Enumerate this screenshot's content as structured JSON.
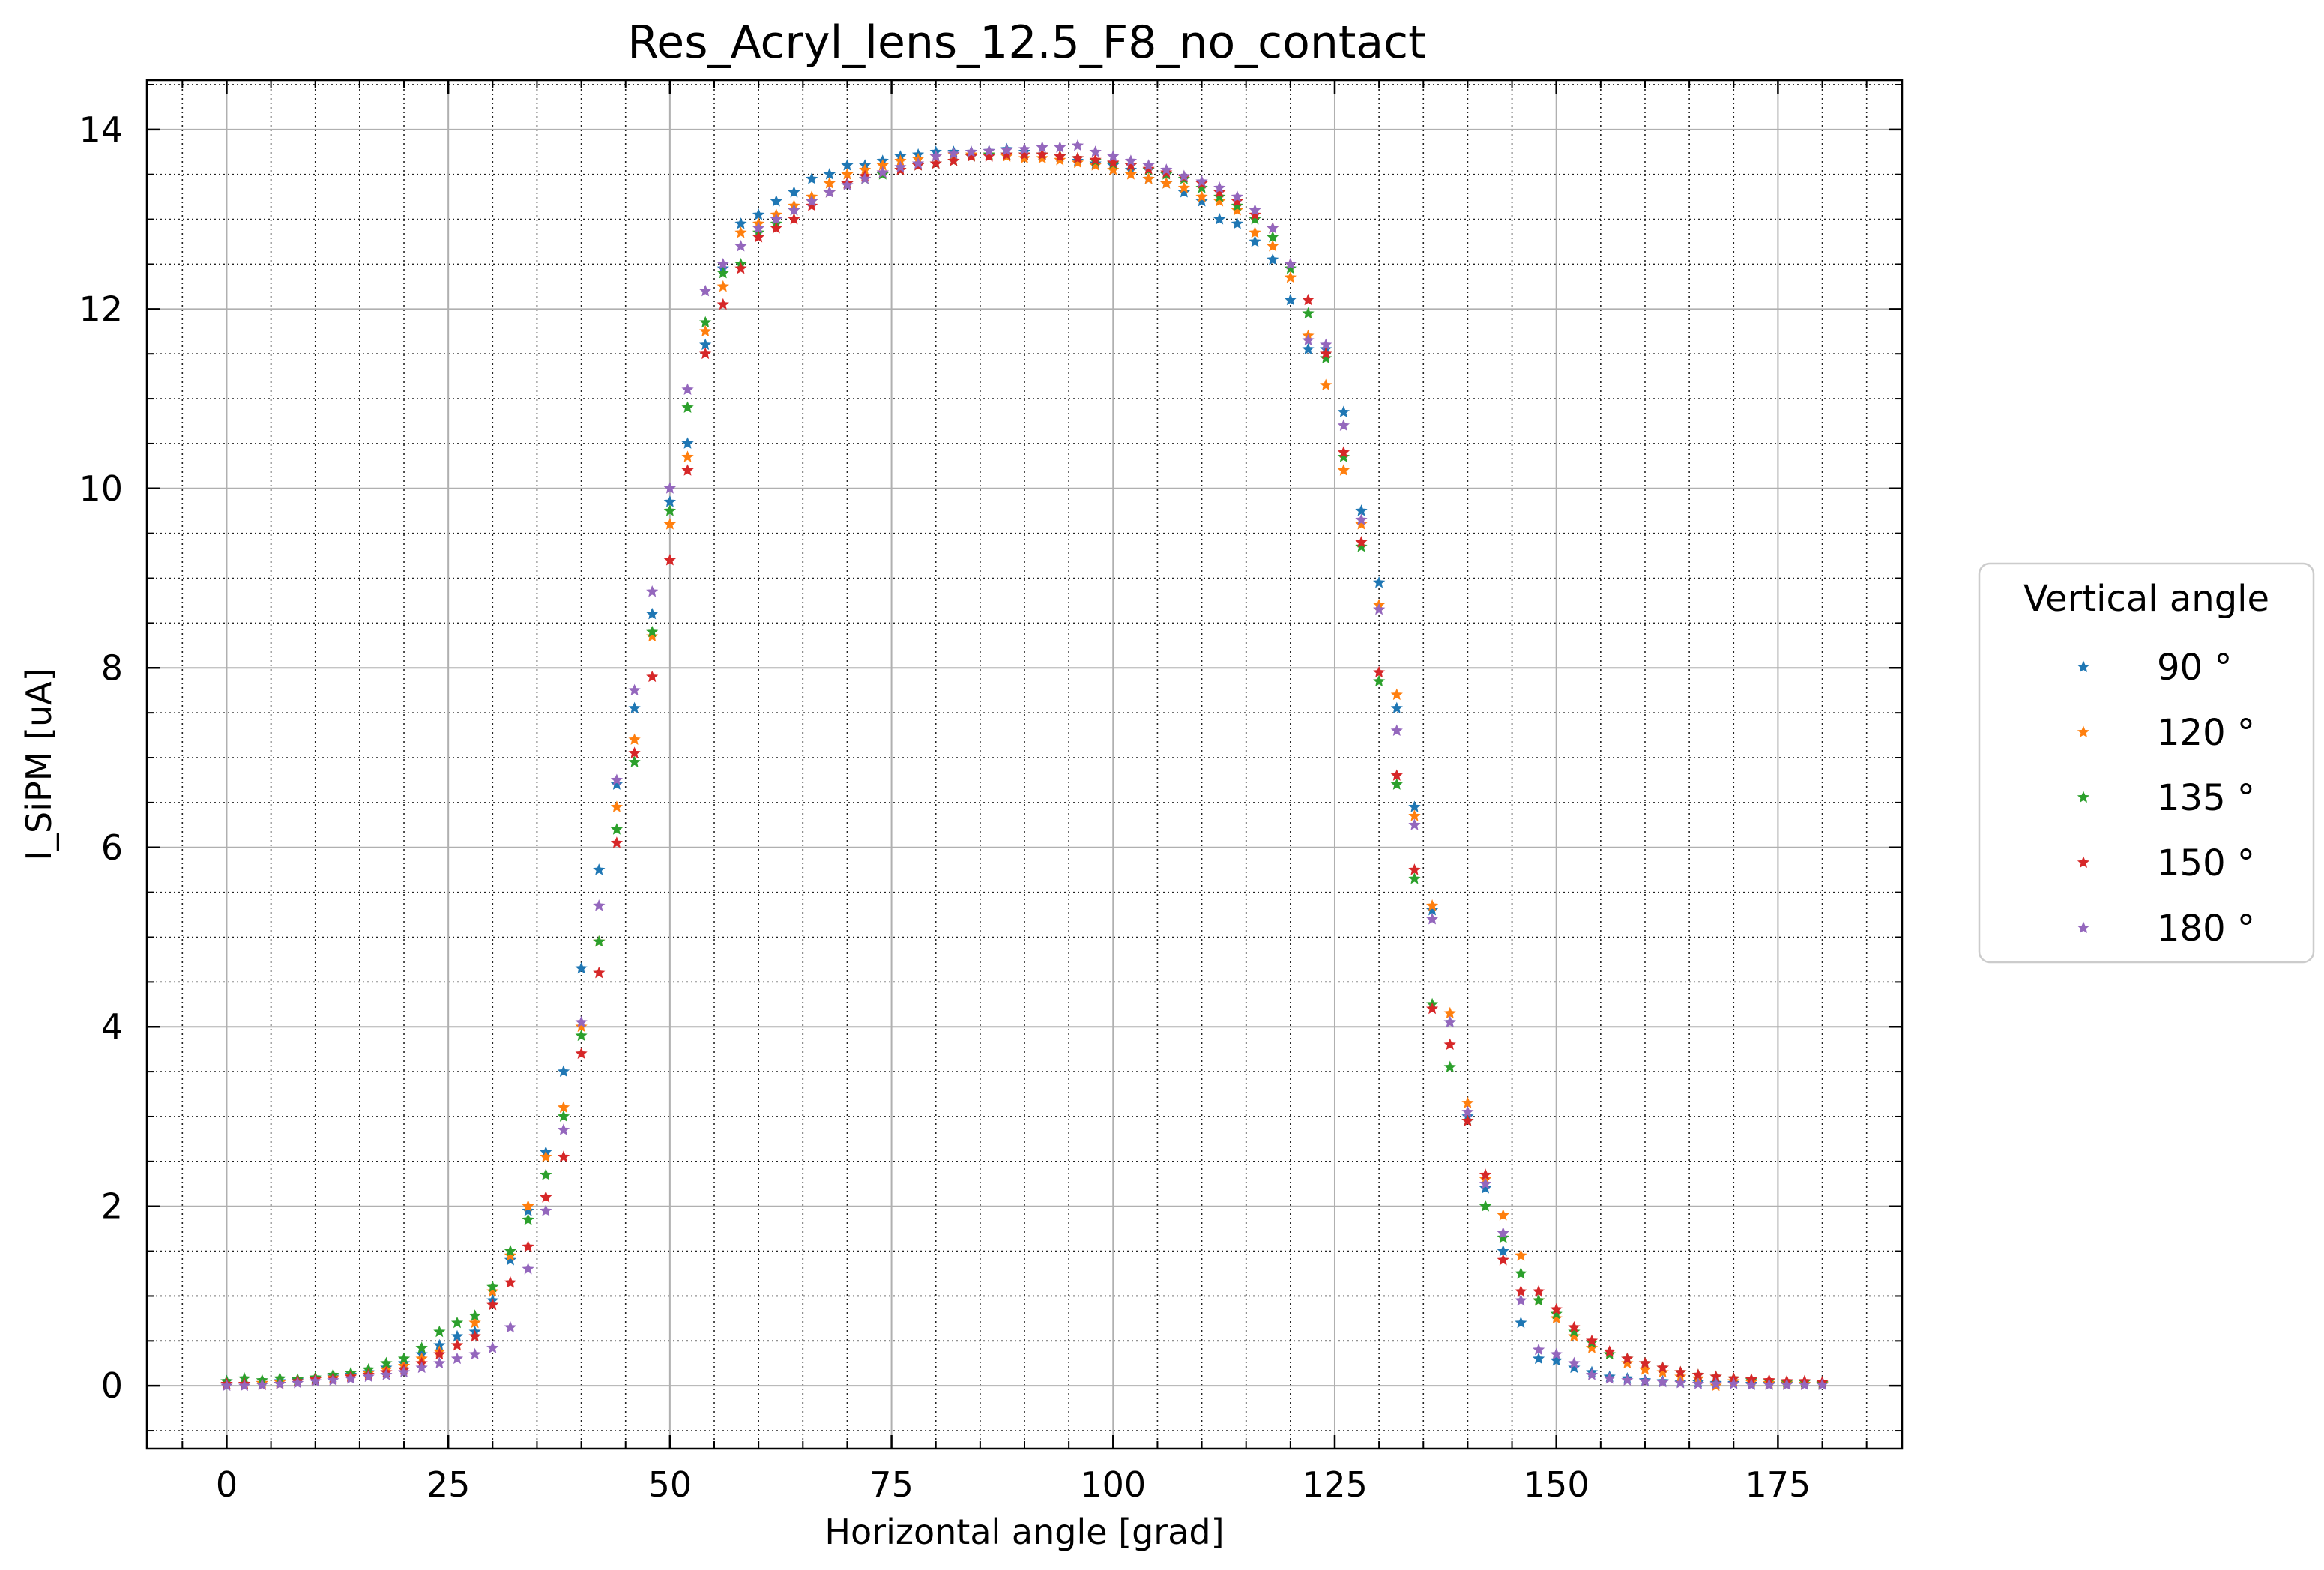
{
  "chart_data": {
    "type": "scatter",
    "title": "Res_Acryl_lens_12.5_F8_no_contact",
    "xlabel": "Horizontal angle [grad]",
    "ylabel": "I_SiPM [uA]",
    "xlim": [
      -9,
      189
    ],
    "ylim": [
      -0.7,
      14.55
    ],
    "xticks": [
      0,
      25,
      50,
      75,
      100,
      125,
      150,
      175
    ],
    "yticks": [
      0,
      2,
      4,
      6,
      8,
      10,
      12,
      14
    ],
    "xtick_labels": [
      "0",
      "25",
      "50",
      "75",
      "100",
      "125",
      "150",
      "175"
    ],
    "ytick_labels": [
      "0",
      "2",
      "4",
      "6",
      "8",
      "10",
      "12",
      "14"
    ],
    "grid": true,
    "minor_grid": true,
    "marker": "star",
    "legend": {
      "title": "Vertical angle",
      "placement": "outside-right"
    },
    "x": [
      0,
      2,
      4,
      6,
      8,
      10,
      12,
      14,
      16,
      18,
      20,
      22,
      24,
      26,
      28,
      30,
      32,
      34,
      36,
      38,
      40,
      42,
      44,
      46,
      48,
      50,
      52,
      54,
      56,
      58,
      60,
      62,
      64,
      66,
      68,
      70,
      72,
      74,
      76,
      78,
      80,
      82,
      84,
      86,
      88,
      90,
      92,
      94,
      96,
      98,
      100,
      102,
      104,
      106,
      108,
      110,
      112,
      114,
      116,
      118,
      120,
      122,
      124,
      126,
      128,
      130,
      132,
      134,
      136,
      138,
      140,
      142,
      144,
      146,
      148,
      150,
      152,
      154,
      156,
      158,
      160,
      162,
      164,
      166,
      168,
      170,
      172,
      174,
      176,
      178,
      180
    ],
    "series": [
      {
        "name": "90 °",
        "color": "#1f77b4",
        "values": [
          0.05,
          0.02,
          0.03,
          0.05,
          0.06,
          0.08,
          0.1,
          0.12,
          0.15,
          0.2,
          0.25,
          0.35,
          0.45,
          0.55,
          0.6,
          0.95,
          1.4,
          1.95,
          2.6,
          3.5,
          4.65,
          5.75,
          6.7,
          7.55,
          8.6,
          9.85,
          10.5,
          11.6,
          12.45,
          12.95,
          13.05,
          13.2,
          13.3,
          13.45,
          13.5,
          13.6,
          13.6,
          13.65,
          13.7,
          13.72,
          13.75,
          13.75,
          13.75,
          13.76,
          13.78,
          13.75,
          13.72,
          13.7,
          13.65,
          13.62,
          13.6,
          13.55,
          13.45,
          13.4,
          13.3,
          13.2,
          13.0,
          12.95,
          12.75,
          12.55,
          12.1,
          11.55,
          11.55,
          10.85,
          9.75,
          8.95,
          7.55,
          6.45,
          5.3,
          4.05,
          3.0,
          2.2,
          1.5,
          0.7,
          0.3,
          0.28,
          0.2,
          0.15,
          0.1,
          0.08,
          0.06,
          0.05,
          0.04,
          0.04,
          0.03,
          0.03,
          0.02,
          0.02,
          0.02,
          0.02,
          0.02
        ]
      },
      {
        "name": "120 °",
        "color": "#ff7f0e",
        "values": [
          0.02,
          0.02,
          0.03,
          0.04,
          0.05,
          0.07,
          0.09,
          0.11,
          0.14,
          0.18,
          0.22,
          0.3,
          0.38,
          0.45,
          0.7,
          1.05,
          1.45,
          2.0,
          2.55,
          3.1,
          4.0,
          4.95,
          6.45,
          7.2,
          8.35,
          9.6,
          10.35,
          11.75,
          12.25,
          12.85,
          12.95,
          13.05,
          13.15,
          13.25,
          13.4,
          13.5,
          13.55,
          13.6,
          13.65,
          13.67,
          13.7,
          13.72,
          13.72,
          13.72,
          13.7,
          13.68,
          13.68,
          13.66,
          13.63,
          13.6,
          13.55,
          13.5,
          13.45,
          13.4,
          13.35,
          13.25,
          13.2,
          13.1,
          12.85,
          12.7,
          12.35,
          11.7,
          11.15,
          10.2,
          9.6,
          8.7,
          7.7,
          6.35,
          5.35,
          4.15,
          3.15,
          2.3,
          1.9,
          1.45,
          0.95,
          0.75,
          0.55,
          0.42,
          0.35,
          0.25,
          0.18,
          0.15,
          0.1,
          0.08,
          0.0,
          0.05,
          0.04,
          0.03,
          0.03,
          0.02,
          0.02
        ]
      },
      {
        "name": "135 °",
        "color": "#2ca02c",
        "values": [
          0.05,
          0.08,
          0.06,
          0.08,
          0.07,
          0.09,
          0.12,
          0.14,
          0.18,
          0.25,
          0.3,
          0.42,
          0.6,
          0.7,
          0.78,
          1.1,
          1.5,
          1.85,
          2.35,
          3.0,
          3.9,
          4.95,
          6.2,
          6.95,
          8.4,
          9.75,
          10.9,
          11.85,
          12.4,
          12.5,
          12.85,
          12.95,
          13.1,
          13.2,
          13.3,
          13.4,
          13.45,
          13.5,
          13.55,
          13.6,
          13.62,
          13.65,
          13.7,
          13.72,
          13.72,
          13.72,
          13.72,
          13.7,
          13.68,
          13.65,
          13.62,
          13.6,
          13.55,
          13.5,
          13.45,
          13.35,
          13.25,
          13.15,
          13.0,
          12.8,
          12.45,
          11.95,
          11.45,
          10.35,
          9.35,
          7.85,
          6.7,
          5.65,
          4.25,
          3.55,
          2.95,
          2.0,
          1.65,
          1.25,
          0.95,
          0.8,
          0.6,
          0.48,
          0.35,
          0.3,
          0.25,
          0.2,
          0.15,
          0.12,
          0.1,
          0.08,
          0.06,
          0.05,
          0.04,
          0.04,
          0.03
        ]
      },
      {
        "name": "150 °",
        "color": "#d62728",
        "values": [
          0.02,
          0.02,
          0.01,
          0.02,
          0.05,
          0.07,
          0.08,
          0.1,
          0.12,
          0.15,
          0.18,
          0.25,
          0.35,
          0.45,
          0.55,
          0.9,
          1.15,
          1.55,
          2.1,
          2.55,
          3.7,
          4.6,
          6.05,
          7.05,
          7.9,
          9.2,
          10.2,
          11.5,
          12.05,
          12.45,
          12.8,
          12.9,
          13.0,
          13.15,
          13.3,
          13.4,
          13.48,
          13.52,
          13.55,
          13.6,
          13.62,
          13.65,
          13.7,
          13.7,
          13.72,
          13.72,
          13.72,
          13.7,
          13.68,
          13.66,
          13.63,
          13.6,
          13.56,
          13.52,
          13.47,
          13.4,
          13.3,
          13.2,
          13.05,
          12.9,
          12.5,
          12.1,
          11.5,
          10.4,
          9.4,
          7.95,
          6.8,
          5.75,
          4.2,
          3.8,
          2.95,
          2.35,
          1.4,
          1.05,
          1.05,
          0.85,
          0.65,
          0.5,
          0.38,
          0.3,
          0.25,
          0.2,
          0.15,
          0.12,
          0.1,
          0.08,
          0.07,
          0.06,
          0.05,
          0.05,
          0.04
        ]
      },
      {
        "name": "180 °",
        "color": "#9467bd",
        "values": [
          0.0,
          0.0,
          0.01,
          0.02,
          0.03,
          0.05,
          0.06,
          0.08,
          0.1,
          0.12,
          0.15,
          0.2,
          0.25,
          0.3,
          0.35,
          0.42,
          0.65,
          1.3,
          1.95,
          2.85,
          4.05,
          5.35,
          6.75,
          7.75,
          8.85,
          10.0,
          11.1,
          12.2,
          12.5,
          12.7,
          12.9,
          13.0,
          13.1,
          13.2,
          13.3,
          13.38,
          13.45,
          13.52,
          13.58,
          13.62,
          13.7,
          13.73,
          13.75,
          13.76,
          13.77,
          13.78,
          13.8,
          13.8,
          13.82,
          13.75,
          13.7,
          13.65,
          13.6,
          13.55,
          13.48,
          13.42,
          13.35,
          13.25,
          13.1,
          12.9,
          12.5,
          11.65,
          11.6,
          10.7,
          9.65,
          8.65,
          7.3,
          6.25,
          5.2,
          4.05,
          3.05,
          2.25,
          1.7,
          0.95,
          0.4,
          0.35,
          0.25,
          0.12,
          0.08,
          0.06,
          0.05,
          0.04,
          0.03,
          0.02,
          0.02,
          0.02,
          0.01,
          0.01,
          0.01,
          0.01,
          0.01
        ]
      }
    ]
  }
}
